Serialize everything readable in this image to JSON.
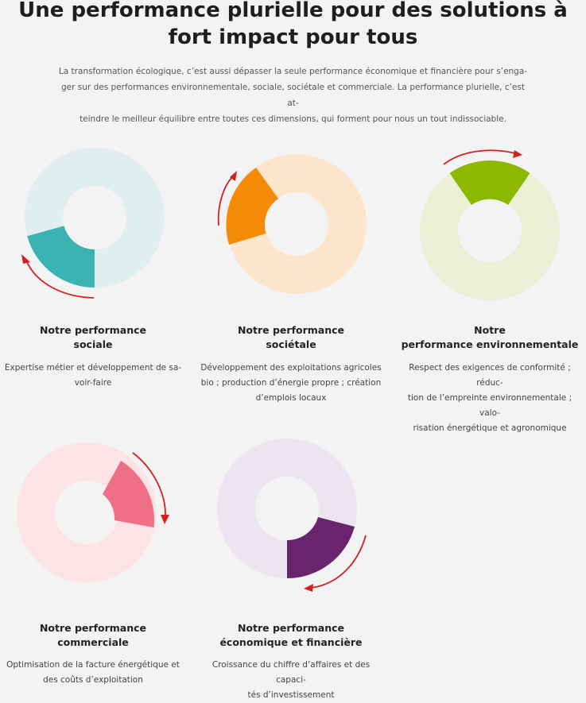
{
  "title": {
    "line1": "Une performance plurielle pour des solutions à",
    "line2": "fort impact pour tous"
  },
  "intro": {
    "line1": "La transformation écologique, c’est aussi dépasser la seule performance économique et financière pour s’enga-",
    "line2": "ger sur des performances environnementale, sociale, sociétale et commerciale. La performance plurielle, c’est at-",
    "line3": "teindre le meilleur équilibre entre toutes ces dimensions, qui forment pour nous un tout indissociable."
  },
  "colors": {
    "arrow": "#d41f1f",
    "sociale": {
      "light": "#e1eef0",
      "dark": "#3cb3b3"
    },
    "societale": {
      "light": "#fde5cc",
      "dark": "#f58a07"
    },
    "environnementale": {
      "light": "#e9f0d5",
      "dark": "#8cb800"
    },
    "commerciale": {
      "light": "#fbe3e6",
      "dark": "#ef6f86"
    },
    "economique": {
      "light": "#ece5f0",
      "dark": "#6a246e"
    }
  },
  "performances": [
    {
      "key": "sociale",
      "title_lines": [
        "Notre performance",
        "sociale"
      ],
      "desc_lines": [
        "Expertise métier et développement de sa-",
        "voir-faire"
      ]
    },
    {
      "key": "societale",
      "title_lines": [
        "Notre performance",
        "sociétale"
      ],
      "desc_lines": [
        "Développement des exploitations agricoles",
        "bio ; production d’énergie propre ; création",
        "d’emplois locaux"
      ]
    },
    {
      "key": "environnementale",
      "title_lines": [
        "Notre",
        "performance environnementale"
      ],
      "desc_lines": [
        "Respect des exigences de conformité ; réduc-",
        "tion de l’empreinte environnementale ; valo-",
        "risation énergétique et agronomique"
      ]
    },
    {
      "key": "commerciale",
      "title_lines": [
        "Notre performance",
        "commerciale"
      ],
      "desc_lines": [
        "Optimisation de la facture énergétique et",
        "des coûts d’exploitation"
      ]
    },
    {
      "key": "economique",
      "title_lines": [
        "Notre performance",
        "économique et financière"
      ],
      "desc_lines": [
        "Croissance du chiffre d’affaires et des capaci-",
        "tés d’investissement"
      ]
    }
  ]
}
